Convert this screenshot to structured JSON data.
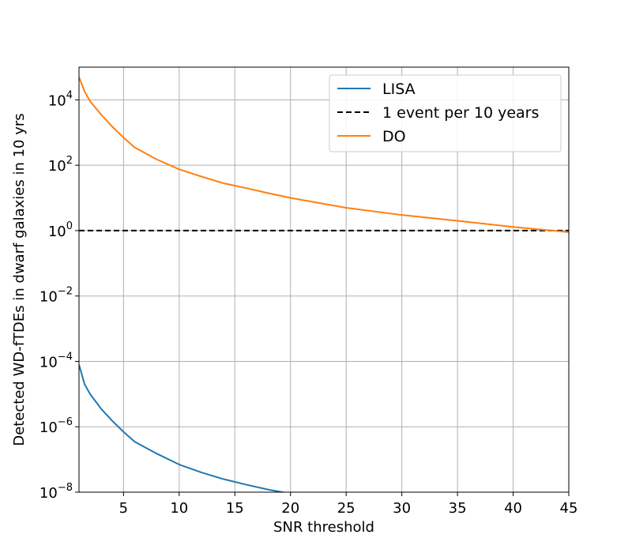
{
  "chart_data": {
    "type": "line",
    "title": "",
    "xlabel": "SNR threshold",
    "ylabel": "Detected WD-fTDEs in dwarf galaxies in 10 yrs",
    "xlim": [
      1,
      45
    ],
    "ylim": [
      1e-08,
      100000
    ],
    "yscale": "log",
    "grid": true,
    "legend_position": "top-right",
    "x_ticks": [
      5,
      10,
      15,
      20,
      25,
      30,
      35,
      40,
      45
    ],
    "y_ticks": [
      {
        "value": 1e-08,
        "base": "10",
        "exp": "−8"
      },
      {
        "value": 1e-06,
        "base": "10",
        "exp": "−6"
      },
      {
        "value": 0.0001,
        "base": "10",
        "exp": "−4"
      },
      {
        "value": 0.01,
        "base": "10",
        "exp": "−2"
      },
      {
        "value": 1,
        "base": "10",
        "exp": "0"
      },
      {
        "value": 100,
        "base": "10",
        "exp": "2"
      },
      {
        "value": 10000,
        "base": "10",
        "exp": "4"
      }
    ],
    "series": [
      {
        "name": "LISA",
        "color": "#1f77b4",
        "style": "solid",
        "x": [
          1,
          1.5,
          2,
          3,
          4,
          5,
          6,
          8,
          10,
          12,
          14,
          16,
          18,
          20
        ],
        "y": [
          8e-05,
          2e-05,
          1e-05,
          3.5e-06,
          1.5e-06,
          7e-07,
          3.5e-07,
          1.5e-07,
          7e-08,
          4e-08,
          2.5e-08,
          1.7e-08,
          1.2e-08,
          9e-09
        ]
      },
      {
        "name": "1 event per 10 years",
        "color": "#000000",
        "style": "dashed",
        "x": [
          1,
          45
        ],
        "y": [
          1,
          1
        ]
      },
      {
        "name": "DO",
        "color": "#ff7f0e",
        "style": "solid",
        "x": [
          1,
          1.5,
          2,
          3,
          4,
          5,
          6,
          8,
          10,
          12,
          14,
          16,
          18,
          20,
          25,
          30,
          35,
          40,
          45
        ],
        "y": [
          50000,
          18000,
          9000,
          3500,
          1500,
          700,
          350,
          150,
          75,
          45,
          28,
          20,
          14,
          10,
          5,
          3,
          2,
          1.3,
          0.9
        ]
      }
    ]
  }
}
